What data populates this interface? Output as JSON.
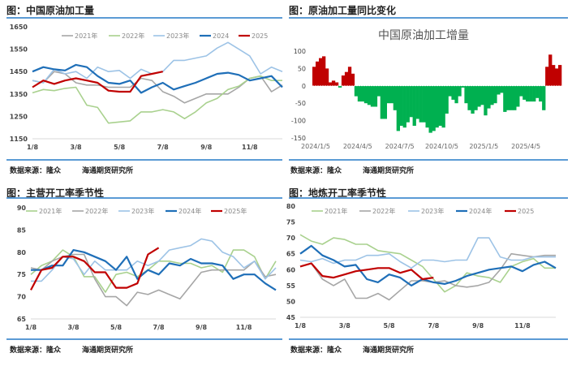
{
  "colors": {
    "y2021": "#a6a6a6",
    "green": "#a9d18e",
    "lightblue": "#9dc3e6",
    "blue": "#1f6fb8",
    "red": "#c00000",
    "rule": "#5b9bd5",
    "bar_pos": "#c00000",
    "bar_neg": "#00b050"
  },
  "panels": [
    {
      "title": "图：中国原油加工量",
      "source": "数据来源：隆众",
      "source2": "海通期货研究所"
    },
    {
      "title": "图：原油加工量同比变化",
      "source": "数据来源：隆众",
      "source2": "海通期货研究所"
    },
    {
      "title": "图：主营开工率季节性",
      "source": "数据来源：隆众",
      "source2": "海通期货研究所"
    },
    {
      "title": "图：地炼开工率季节性",
      "source": "数据来源：隆众",
      "source2": "海通期货研究所"
    }
  ],
  "chart_data": [
    {
      "type": "line",
      "title": "",
      "ylim": [
        1150,
        1650
      ],
      "yticks": [
        1150,
        1250,
        1350,
        1450,
        1550,
        1650
      ],
      "xticks": [
        "1/8",
        "3/8",
        "5/8",
        "7/8",
        "9/8",
        "11/8"
      ],
      "legend": "top",
      "series": [
        {
          "name": "2021年",
          "color": "#a6a6a6",
          "values": [
            1410,
            1400,
            1450,
            1440,
            1400,
            1390,
            1390,
            1380,
            1380,
            1380,
            1420,
            1410,
            1360,
            1340,
            1310,
            1330,
            1350,
            1350,
            1350,
            1380,
            1420,
            1430,
            1360,
            1390
          ]
        },
        {
          "name": "2022年",
          "color": "#a9d18e",
          "values": [
            1355,
            1370,
            1365,
            1375,
            1380,
            1300,
            1290,
            1220,
            1225,
            1230,
            1270,
            1270,
            1280,
            1270,
            1240,
            1270,
            1310,
            1330,
            1370,
            1385,
            1420,
            1430,
            1410,
            1410
          ]
        },
        {
          "name": "2023年",
          "color": "#9dc3e6",
          "values": [
            1410,
            1400,
            1460,
            1440,
            1450,
            1420,
            1470,
            1450,
            1455,
            1420,
            1460,
            1440,
            1450,
            1500,
            1500,
            1510,
            1520,
            1555,
            1580,
            1550,
            1520,
            1440,
            1470,
            1450
          ]
        },
        {
          "name": "2024",
          "color": "#1f6fb8",
          "values": [
            1450,
            1470,
            1460,
            1455,
            1480,
            1470,
            1430,
            1400,
            1395,
            1410,
            1355,
            1380,
            1400,
            1370,
            1385,
            1400,
            1420,
            1440,
            1445,
            1435,
            1410,
            1420,
            1430,
            1380
          ]
        },
        {
          "name": "2025",
          "color": "#c00000",
          "values": [
            1380,
            1410,
            1395,
            1410,
            1420,
            1410,
            1400,
            1365,
            1360,
            1360,
            1430,
            1440,
            1450
          ]
        }
      ]
    },
    {
      "type": "bar",
      "title": "中国原油加工增量",
      "ylim": [
        -150,
        100
      ],
      "yticks": [
        -150,
        -100,
        -50,
        0,
        50,
        100
      ],
      "xticks": [
        "2024/1/5",
        "2024/4/5",
        "2024/7/5",
        "2024/10/5",
        "2025/1/5",
        "2025/4/5"
      ],
      "values": [
        55,
        70,
        80,
        85,
        50,
        10,
        15,
        10,
        -5,
        30,
        40,
        55,
        35,
        -30,
        -45,
        -45,
        -50,
        -55,
        -60,
        -60,
        -30,
        -95,
        -95,
        -50,
        -50,
        -70,
        -130,
        -115,
        -120,
        -105,
        -90,
        -115,
        -95,
        -105,
        -105,
        -120,
        -135,
        -130,
        -120,
        -115,
        -120,
        -80,
        -30,
        -40,
        -50,
        -30,
        -5,
        -50,
        -70,
        -80,
        -70,
        -60,
        -55,
        -85,
        -65,
        -55,
        -50,
        -25,
        -20,
        -75,
        -70,
        -70,
        -70,
        -60,
        -30,
        -40,
        -45,
        -45,
        -45,
        -35,
        -45,
        -70,
        55,
        90,
        60,
        50,
        60
      ]
    },
    {
      "type": "line",
      "title": "",
      "ylim": [
        65,
        90
      ],
      "yticks": [
        65,
        70,
        75,
        80,
        85,
        90
      ],
      "xticks": [
        "1/8",
        "3/8",
        "5/8",
        "7/8",
        "9/8",
        "11/8"
      ],
      "legend": "top",
      "series": [
        {
          "name": "2021年",
          "color": "#a9d18e",
          "values": [
            75,
            77,
            78,
            80.5,
            79,
            74.5,
            74.5,
            71,
            75,
            75.5,
            74.5,
            76,
            78,
            78,
            77.5,
            77.5,
            76.5,
            77,
            75.5,
            80.5,
            80.5,
            79,
            74,
            78
          ]
        },
        {
          "name": "2022年",
          "color": "#a6a6a6",
          "values": [
            76.5,
            76,
            78,
            79,
            79.5,
            79.5,
            74,
            70,
            70,
            68,
            71,
            70.5,
            71.5,
            70.5,
            69.5,
            72.5,
            75.5,
            76,
            76,
            76,
            76,
            78,
            74.5,
            75
          ]
        },
        {
          "name": "2023年",
          "color": "#9dc3e6",
          "values": [
            73.5,
            73.5,
            76,
            79,
            78.5,
            75,
            78,
            76,
            76,
            76,
            78,
            77,
            78,
            80.5,
            81,
            81.5,
            83,
            82.5,
            80,
            79,
            76.5,
            78,
            74,
            76.5
          ]
        },
        {
          "name": "2024年",
          "color": "#1f6fb8",
          "values": [
            76,
            76,
            77,
            77,
            80.5,
            80,
            79,
            78,
            76,
            79,
            74,
            76,
            75,
            77.5,
            77,
            78.5,
            77.5,
            77.5,
            77,
            74,
            75,
            75,
            73,
            71.5
          ]
        },
        {
          "name": "2025年",
          "color": "#c00000",
          "values": [
            71.5,
            76,
            76.5,
            79,
            79,
            78,
            75.5,
            75.5,
            72,
            72,
            73,
            79.5,
            81
          ]
        }
      ]
    },
    {
      "type": "line",
      "title": "",
      "ylim": [
        45,
        80
      ],
      "yticks": [
        45,
        50,
        55,
        60,
        65,
        70,
        75,
        80
      ],
      "xticks": [
        "1/8",
        "3/8",
        "5/8",
        "7/8",
        "9/8",
        "11/8"
      ],
      "legend": "top",
      "series": [
        {
          "name": "2021年",
          "color": "#a9d18e",
          "values": [
            71,
            69,
            68,
            70,
            69.5,
            68,
            68,
            66,
            65.5,
            65,
            63,
            61,
            57,
            53,
            55,
            59,
            58,
            57.5,
            56,
            61,
            62.5,
            63.5,
            60.5,
            60.5
          ]
        },
        {
          "name": "2022年",
          "color": "#a6a6a6",
          "values": [
            61,
            62,
            57,
            55,
            57,
            51,
            51,
            52.5,
            50.5,
            53.5,
            56.5,
            56.5,
            56,
            56.5,
            55,
            54.5,
            55,
            56,
            60,
            65,
            64.5,
            64,
            64.5,
            64.5
          ]
        },
        {
          "name": "2023年",
          "color": "#9dc3e6",
          "values": [
            63,
            62.5,
            63.5,
            62,
            63,
            63,
            64.5,
            64.5,
            65,
            62.5,
            60.5,
            63,
            63,
            62.5,
            63,
            63,
            70,
            70,
            64,
            63,
            63,
            64,
            64,
            64
          ]
        },
        {
          "name": "2024年",
          "color": "#1f6fb8",
          "values": [
            65,
            67.5,
            64.5,
            63,
            61,
            61.5,
            57,
            56,
            58.5,
            57.5,
            55,
            57,
            56,
            55.5,
            56.5,
            58,
            59,
            60,
            60.5,
            61,
            59.5,
            61.5,
            62.5,
            60.5
          ]
        },
        {
          "name": "2025",
          "color": "#c00000",
          "values": [
            61,
            62,
            58,
            57.5,
            58.5,
            59.5,
            60,
            60.5,
            60.5,
            59,
            60,
            57,
            57.5
          ]
        }
      ]
    }
  ]
}
